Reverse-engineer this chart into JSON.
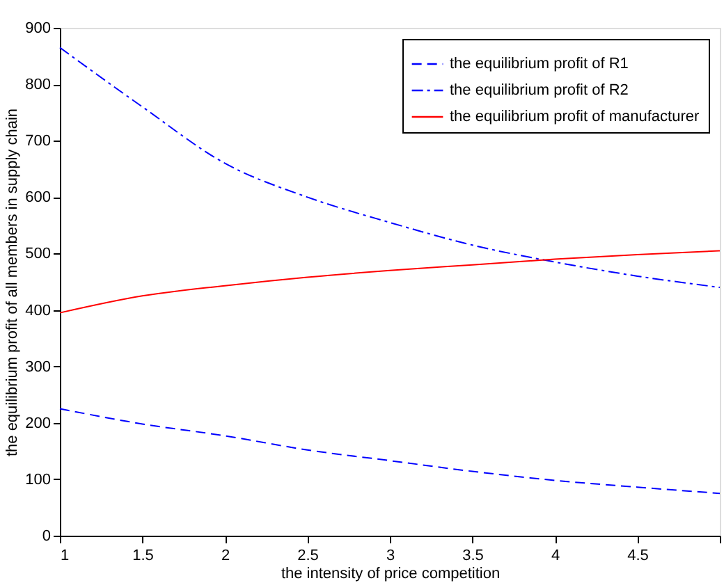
{
  "chart_data": {
    "type": "line",
    "xlabel": "the intensity of price competition",
    "ylabel": "the equilibrium profit of all members in supply chain",
    "x": [
      1,
      1.5,
      2,
      2.5,
      3,
      3.5,
      4,
      4.5,
      5
    ],
    "series": [
      {
        "name": "the equilibrium profit of R1",
        "color": "#0000ff",
        "line_style": "dashed",
        "values": [
          225,
          198,
          177,
          152,
          133,
          114,
          98,
          86,
          75
        ]
      },
      {
        "name": "the equilibrium profit of R2",
        "color": "#0000ff",
        "line_style": "dotted",
        "values": [
          865,
          760,
          660,
          600,
          555,
          515,
          485,
          460,
          440
        ]
      },
      {
        "name": "the equilibrium profit of manufacturer",
        "color": "#ff0000",
        "line_style": "solid",
        "values": [
          395,
          425,
          443,
          458,
          470,
          480,
          490,
          498,
          505
        ]
      }
    ],
    "xlim": [
      1,
      5
    ],
    "xticks": [
      1,
      1.5,
      2,
      2.5,
      3,
      3.5,
      4,
      4.5,
      {
        "value": 5,
        "label": null
      }
    ],
    "ylim": [
      0,
      900
    ],
    "yticks": [
      0,
      100,
      200,
      300,
      400,
      500,
      600,
      700,
      800,
      900
    ],
    "grid": false,
    "legend": "top right",
    "marker": "none"
  }
}
